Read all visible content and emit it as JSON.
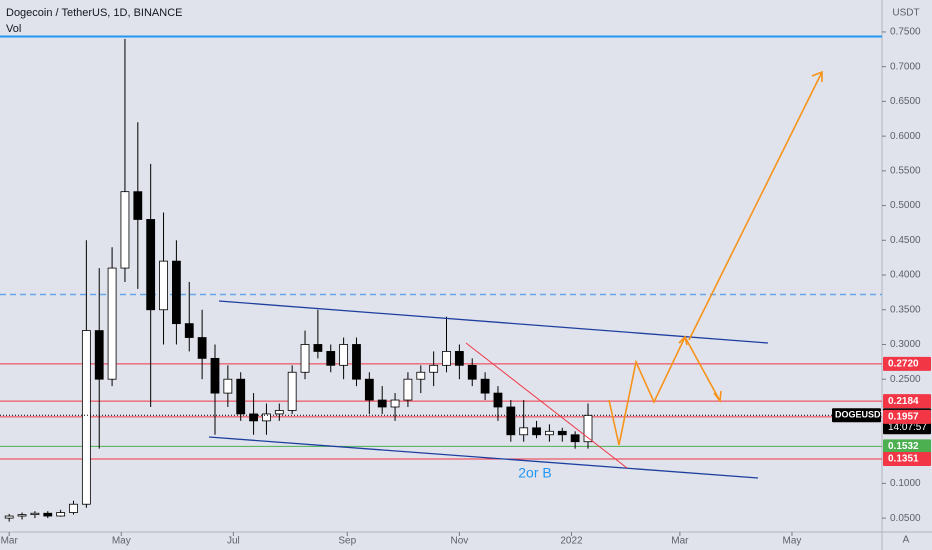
{
  "chart_data": {
    "type": "candlestick",
    "title": "Dogecoin / TetherUS, 1D, BINANCE",
    "subtitle": "Vol",
    "y_unit": "USDT",
    "corner_label": "A",
    "annotation": "2or B",
    "xlim": [
      -5,
      475
    ],
    "ylim": [
      0.03,
      0.796
    ],
    "xticks": [
      {
        "value": 0,
        "label": "Mar"
      },
      {
        "value": 61,
        "label": "May"
      },
      {
        "value": 122,
        "label": "Jul"
      },
      {
        "value": 184,
        "label": "Sep"
      },
      {
        "value": 245,
        "label": "Nov"
      },
      {
        "value": 306,
        "label": "2022"
      },
      {
        "value": 365,
        "label": "Mar"
      },
      {
        "value": 426,
        "label": "May"
      }
    ],
    "yticks": [
      {
        "value": 0.05,
        "label": "0.0500"
      },
      {
        "value": 0.1,
        "label": "0.1000"
      },
      {
        "value": 0.25,
        "label": "0.2500"
      },
      {
        "value": 0.3,
        "label": "0.3000"
      },
      {
        "value": 0.35,
        "label": "0.3500"
      },
      {
        "value": 0.4,
        "label": "0.4000"
      },
      {
        "value": 0.45,
        "label": "0.4500"
      },
      {
        "value": 0.5,
        "label": "0.5000"
      },
      {
        "value": 0.55,
        "label": "0.5500"
      },
      {
        "value": 0.6,
        "label": "0.6000"
      },
      {
        "value": 0.65,
        "label": "0.6500"
      },
      {
        "value": 0.7,
        "label": "0.7000"
      },
      {
        "value": 0.75,
        "label": "0.7500"
      }
    ],
    "up_color": "#ffffff",
    "down_color": "#000000",
    "candles": {
      "x": [
        0,
        7,
        14,
        21,
        28,
        35,
        42,
        49,
        56,
        63,
        70,
        77,
        84,
        91,
        98,
        105,
        112,
        119,
        126,
        133,
        140,
        147,
        154,
        161,
        168,
        175,
        182,
        189,
        196,
        203,
        210,
        217,
        224,
        231,
        238,
        245,
        252,
        259,
        266,
        273,
        280,
        287,
        294,
        301,
        308,
        315
      ],
      "open": [
        0.05,
        0.053,
        0.055,
        0.057,
        0.053,
        0.058,
        0.07,
        0.32,
        0.25,
        0.41,
        0.52,
        0.48,
        0.35,
        0.42,
        0.33,
        0.31,
        0.28,
        0.23,
        0.25,
        0.2,
        0.19,
        0.2,
        0.205,
        0.26,
        0.3,
        0.29,
        0.27,
        0.3,
        0.25,
        0.22,
        0.21,
        0.22,
        0.25,
        0.26,
        0.27,
        0.29,
        0.27,
        0.25,
        0.23,
        0.21,
        0.17,
        0.18,
        0.17,
        0.175,
        0.17,
        0.16
      ],
      "high": [
        0.056,
        0.058,
        0.06,
        0.06,
        0.062,
        0.075,
        0.45,
        0.41,
        0.44,
        0.74,
        0.62,
        0.56,
        0.49,
        0.45,
        0.39,
        0.35,
        0.3,
        0.27,
        0.26,
        0.23,
        0.215,
        0.215,
        0.27,
        0.32,
        0.35,
        0.3,
        0.31,
        0.31,
        0.26,
        0.24,
        0.23,
        0.26,
        0.27,
        0.29,
        0.34,
        0.3,
        0.28,
        0.26,
        0.24,
        0.22,
        0.22,
        0.19,
        0.185,
        0.18,
        0.175,
        0.215
      ],
      "low": [
        0.045,
        0.048,
        0.05,
        0.05,
        0.052,
        0.055,
        0.065,
        0.15,
        0.24,
        0.39,
        0.38,
        0.21,
        0.3,
        0.3,
        0.29,
        0.25,
        0.17,
        0.21,
        0.19,
        0.17,
        0.17,
        0.19,
        0.2,
        0.25,
        0.28,
        0.26,
        0.25,
        0.24,
        0.2,
        0.2,
        0.19,
        0.21,
        0.23,
        0.24,
        0.26,
        0.25,
        0.24,
        0.22,
        0.19,
        0.16,
        0.16,
        0.165,
        0.16,
        0.16,
        0.15,
        0.15
      ],
      "close": [
        0.053,
        0.055,
        0.057,
        0.053,
        0.058,
        0.07,
        0.32,
        0.25,
        0.41,
        0.52,
        0.48,
        0.35,
        0.42,
        0.33,
        0.31,
        0.28,
        0.23,
        0.25,
        0.2,
        0.19,
        0.2,
        0.205,
        0.26,
        0.3,
        0.29,
        0.27,
        0.3,
        0.25,
        0.22,
        0.21,
        0.22,
        0.25,
        0.26,
        0.27,
        0.29,
        0.27,
        0.25,
        0.23,
        0.21,
        0.17,
        0.18,
        0.17,
        0.175,
        0.17,
        0.16,
        0.198
      ]
    },
    "hlines": [
      {
        "value": 0.7435,
        "color": "#2196f3",
        "dashed": false
      },
      {
        "value": 0.372,
        "color": "#64a6f0",
        "dashed": true
      }
    ],
    "price_levels": [
      {
        "value": 0.272,
        "label": "0.2720",
        "color": "#f23645"
      },
      {
        "value": 0.2184,
        "label": "0.2184",
        "color": "#f23645"
      },
      {
        "value": 0.1957,
        "label": "0.1957",
        "color": "#f23645"
      },
      {
        "value": 0.1532,
        "label": "0.1532",
        "color": "#4caf50"
      },
      {
        "value": 0.1351,
        "label": "0.1351",
        "color": "#f23645"
      }
    ],
    "last_price": {
      "symbol": "DOGEUSDT",
      "value": 0.1981,
      "label": "0.1981",
      "countdown": "14:07:57"
    }
  }
}
